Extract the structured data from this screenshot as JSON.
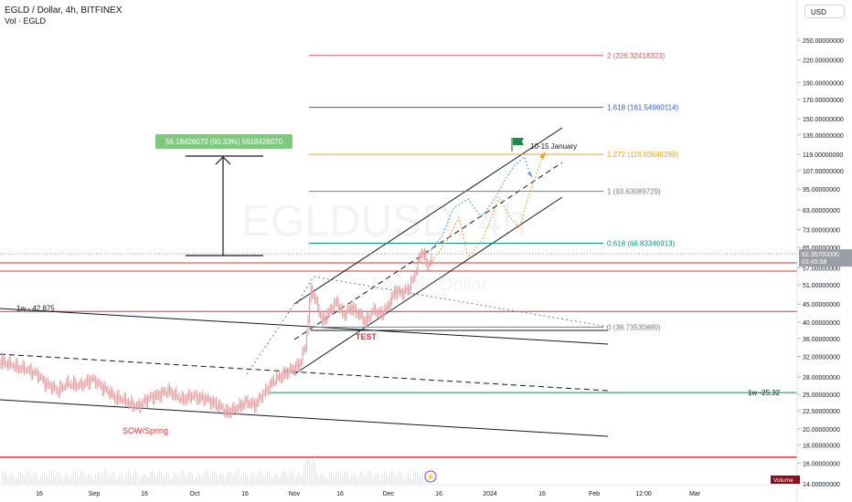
{
  "header": {
    "title": "EGLD / Dollar, 4h, BITFINEX",
    "volume_label": "Vol · EGLD"
  },
  "currency_button": "USD",
  "watermark": {
    "symbol": "EGLDUSD, 4h",
    "name": "Elrond / Dollar"
  },
  "colors": {
    "candles": "#e5a3a6",
    "fib_red": "#e05b5b",
    "fib_blue": "#2b5ce6",
    "fib_orange": "#f0a020",
    "fib_gray": "#787b86",
    "fib_teal": "#089981",
    "support_red": "#e03131",
    "support_green": "#1b8a4a",
    "channel": "#131722",
    "measure_bg": "#7fc97f",
    "annotation_red": "#e03131",
    "price_tag": "#9c9ea5"
  },
  "chart_data": {
    "type": "candlestick",
    "symbol": "EGLD / Dollar",
    "interval": "4h",
    "exchange": "BITFINEX",
    "y_scale": "log",
    "ylim": [
      16.0,
      250.0
    ],
    "x_ticks": [
      "16",
      "Sep",
      "16",
      "Oct",
      "16",
      "Nov",
      "16",
      "Dec",
      "16",
      "2024",
      "16",
      "Feb",
      "12:00",
      "Mar"
    ],
    "y_ticks": [
      250,
      220,
      190,
      170,
      150,
      135,
      119,
      107,
      95,
      83,
      73,
      65,
      57,
      51,
      45,
      40,
      36,
      32,
      28,
      25,
      22.5,
      20,
      18,
      16,
      14
    ],
    "y_tick_labels": [
      "250.00000000",
      "220.00000000",
      "190.00000000",
      "170.00000000",
      "150.00000000",
      "135.00000000",
      "119.00000000",
      "107.00000000",
      "95.00000000",
      "83.00000000",
      "73.00000000",
      "65.00000000",
      "57.00000000",
      "51.00000000",
      "45.00000000",
      "40.00000000",
      "36.00000000",
      "32.00000000",
      "28.00000000",
      "25.00000000",
      "22.50000000",
      "20.00000000",
      "18.00000000",
      "16.00000000",
      "14.00000000"
    ],
    "current_price": "62.35700000",
    "countdown": "03:45:58",
    "fib_levels": [
      {
        "label": "2 (226.32418323)",
        "value": 226.32418323,
        "color_key": "fib_red"
      },
      {
        "label": "1.618 (161.54960114)",
        "value": 161.54960114,
        "color_key": "fib_blue"
      },
      {
        "label": "1.272 (119.03646289)",
        "value": 119.03646289,
        "color_key": "fib_orange"
      },
      {
        "label": "1 (93.63089729)",
        "value": 93.63089729,
        "color_key": "fib_gray"
      },
      {
        "label": "0.618 (66.83346913)",
        "value": 66.83346913,
        "color_key": "fib_teal"
      },
      {
        "label": "0 (38.73530889)",
        "value": 38.73530889,
        "color_key": "fib_gray"
      }
    ],
    "horizontal_lines": [
      {
        "label": "1w - 42.875",
        "value": 42.875
      },
      {
        "label": "1w -25.32",
        "value": 25.32
      }
    ],
    "measure_label": "56.18426070 (90.33%) 5618426070",
    "annotations": [
      "10-15 January",
      "TEST",
      "SOW/Spring"
    ],
    "volume_tag": "Volume",
    "volume_value": "0"
  }
}
